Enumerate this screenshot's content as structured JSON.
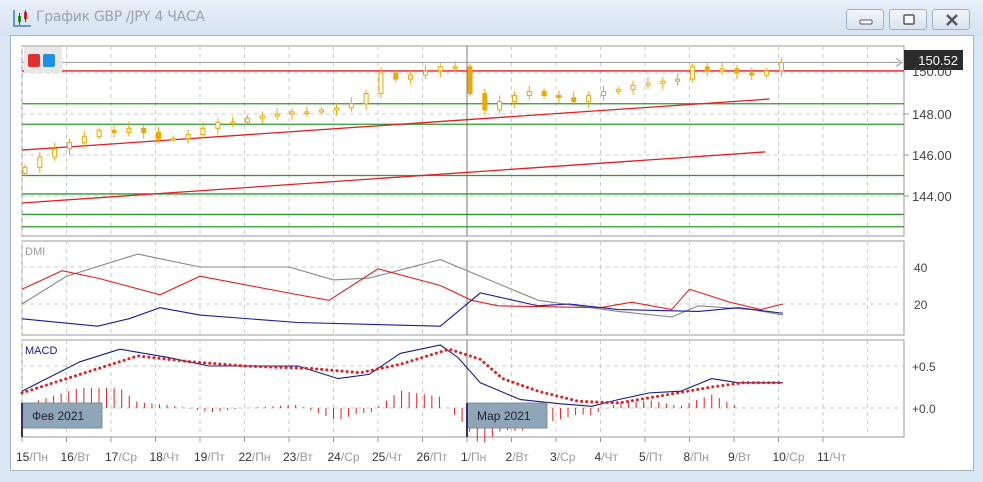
{
  "window": {
    "title": "График GBP /JPY  4 ЧАСА",
    "buttons": [
      "minimize",
      "maximize",
      "close"
    ]
  },
  "colors": {
    "candle": "#f0a800",
    "support": "#2e9a2e",
    "resistance": "#e02020",
    "adx": "#888888",
    "di_plus": "#e02020",
    "di_minus": "#1a1aa0",
    "macd": "#1a1a80",
    "signal": "#e02020",
    "price_tag_bg": "#2b2b2b"
  },
  "price_panel": {
    "current_price": "150.52",
    "y_ticks": [
      "150.00",
      "148.00",
      "146.00",
      "144.00"
    ],
    "legend_swatches": [
      "#e03030",
      "#2090e0"
    ]
  },
  "dmi_panel": {
    "label": "DMI",
    "y_ticks": [
      "40",
      "20"
    ]
  },
  "macd_panel": {
    "label": "MACD",
    "y_ticks": [
      "+0.5",
      "+0.0"
    ]
  },
  "month_badges": [
    "Фев 2021",
    "Мар 2021"
  ],
  "x_axis": {
    "ticks": [
      {
        "day": "15",
        "wd": "/Пн"
      },
      {
        "day": "16",
        "wd": "/Вт"
      },
      {
        "day": "17",
        "wd": "/Ср"
      },
      {
        "day": "18",
        "wd": "/Чт"
      },
      {
        "day": "19",
        "wd": "/Пт"
      },
      {
        "day": "22",
        "wd": "/Пн"
      },
      {
        "day": "23",
        "wd": "/Вт"
      },
      {
        "day": "24",
        "wd": "/Ср"
      },
      {
        "day": "25",
        "wd": "/Чт"
      },
      {
        "day": "26",
        "wd": "/Пт"
      },
      {
        "day": "1",
        "wd": "/Пн"
      },
      {
        "day": "2",
        "wd": "/Вт"
      },
      {
        "day": "3",
        "wd": "/Ср"
      },
      {
        "day": "4",
        "wd": "/Чт"
      },
      {
        "day": "5",
        "wd": "/Пт"
      },
      {
        "day": "8",
        "wd": "/Пн"
      },
      {
        "day": "9",
        "wd": "/Вт"
      },
      {
        "day": "10",
        "wd": "/Ср"
      },
      {
        "day": "11",
        "wd": "/Чт"
      }
    ]
  },
  "chart_data": {
    "type": "candlestick",
    "price_range": [
      142,
      151.2
    ],
    "candle_step_days": 0.3333,
    "closes": [
      145.4,
      145.9,
      146.3,
      146.6,
      146.9,
      147.2,
      147.1,
      147.3,
      147.1,
      146.8,
      146.8,
      147.0,
      147.3,
      147.6,
      147.6,
      147.8,
      147.9,
      148.0,
      148.1,
      148.1,
      148.2,
      148.3,
      148.5,
      149.0,
      150.0,
      149.7,
      149.9,
      150.1,
      150.3,
      150.3,
      149.0,
      148.2,
      148.6,
      148.9,
      149.1,
      148.9,
      148.8,
      148.6,
      148.9,
      149.1,
      149.2,
      149.4,
      149.5,
      149.6,
      149.7,
      150.3,
      150.1,
      150.2,
      150.0,
      149.9,
      150.1,
      150.52
    ],
    "horizontal_levels": [
      {
        "price": 150.1,
        "color": "resistance"
      },
      {
        "price": 148.5,
        "color": "support"
      },
      {
        "price": 147.5,
        "color": "support"
      },
      {
        "price": 145.0,
        "color": "support"
      },
      {
        "price": 144.1,
        "color": "support"
      },
      {
        "price": 143.1,
        "color": "support"
      },
      {
        "price": 142.5,
        "color": "support"
      }
    ],
    "trendlines": [
      {
        "from": [
          0,
          146.24
        ],
        "to": [
          16.8,
          148.73
        ]
      },
      {
        "from": [
          0,
          143.66
        ],
        "to": [
          16.7,
          146.15
        ]
      }
    ],
    "dmi": {
      "range": [
        0,
        55
      ],
      "adx": [
        [
          0,
          20
        ],
        [
          1,
          35
        ],
        [
          2.6,
          47
        ],
        [
          4,
          40
        ],
        [
          6,
          40
        ],
        [
          7,
          33
        ],
        [
          7.8,
          34
        ],
        [
          9.4,
          44
        ],
        [
          10.3,
          35
        ],
        [
          11.6,
          22
        ],
        [
          13.4,
          16
        ],
        [
          14.6,
          13
        ],
        [
          15.2,
          19
        ],
        [
          16.4,
          17
        ],
        [
          17.1,
          14
        ]
      ],
      "di_plus": [
        [
          0,
          28
        ],
        [
          0.9,
          38
        ],
        [
          1.7,
          34
        ],
        [
          3.1,
          25
        ],
        [
          4,
          35
        ],
        [
          6.2,
          25
        ],
        [
          6.9,
          22
        ],
        [
          8,
          39
        ],
        [
          9.4,
          30
        ],
        [
          10.1,
          22
        ],
        [
          10.7,
          19
        ],
        [
          13,
          18
        ],
        [
          13.7,
          21
        ],
        [
          14.6,
          17
        ],
        [
          15,
          28
        ],
        [
          15.9,
          21
        ],
        [
          16.6,
          17
        ],
        [
          17.1,
          20
        ]
      ],
      "di_minus": [
        [
          0,
          12
        ],
        [
          1.7,
          8
        ],
        [
          2.4,
          12
        ],
        [
          3.1,
          18
        ],
        [
          4,
          14
        ],
        [
          6.2,
          10
        ],
        [
          9.4,
          8
        ],
        [
          10.3,
          26
        ],
        [
          11.6,
          19
        ],
        [
          12.3,
          20
        ],
        [
          13.4,
          17
        ],
        [
          15.2,
          16
        ],
        [
          16.1,
          18
        ],
        [
          17.1,
          15
        ]
      ]
    },
    "macd": {
      "range": [
        -0.25,
        0.8
      ],
      "macd": [
        [
          0,
          0.2
        ],
        [
          1.3,
          0.55
        ],
        [
          2.2,
          0.7
        ],
        [
          3.3,
          0.6
        ],
        [
          4.2,
          0.5
        ],
        [
          6.2,
          0.5
        ],
        [
          7.1,
          0.35
        ],
        [
          7.8,
          0.4
        ],
        [
          8.5,
          0.65
        ],
        [
          9.4,
          0.75
        ],
        [
          9.8,
          0.6
        ],
        [
          10.3,
          0.3
        ],
        [
          11.2,
          0.1
        ],
        [
          12.1,
          0.05
        ],
        [
          12.8,
          0.02
        ],
        [
          13.4,
          0.1
        ],
        [
          14.1,
          0.18
        ],
        [
          14.8,
          0.2
        ],
        [
          15.5,
          0.35
        ],
        [
          16.1,
          0.3
        ],
        [
          17.1,
          0.3
        ]
      ],
      "signal": [
        [
          0,
          0.18
        ],
        [
          1.3,
          0.4
        ],
        [
          2.6,
          0.62
        ],
        [
          3.8,
          0.55
        ],
        [
          5,
          0.5
        ],
        [
          6.5,
          0.47
        ],
        [
          7.6,
          0.42
        ],
        [
          8.5,
          0.52
        ],
        [
          9.6,
          0.7
        ],
        [
          10.3,
          0.58
        ],
        [
          10.8,
          0.35
        ],
        [
          11.6,
          0.2
        ],
        [
          12.5,
          0.08
        ],
        [
          13.4,
          0.06
        ],
        [
          14.3,
          0.14
        ],
        [
          15.5,
          0.25
        ],
        [
          16.2,
          0.3
        ],
        [
          17.1,
          0.3
        ]
      ]
    }
  }
}
